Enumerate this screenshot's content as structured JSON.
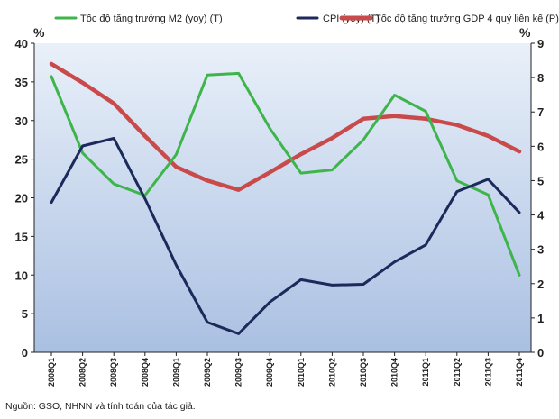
{
  "chart_data": {
    "type": "line",
    "categories": [
      "2008Q1",
      "2008Q2",
      "2008Q3",
      "2008Q4",
      "2009Q1",
      "2009Q2",
      "2009Q3",
      "2009Q4",
      "2010Q1",
      "2010Q2",
      "2010Q3",
      "2010Q4",
      "2011Q1",
      "2011Q2",
      "2011Q3",
      "2011Q4"
    ],
    "left_axis": {
      "unit": "%",
      "ylim": [
        0,
        40
      ],
      "ticks": [
        0,
        5,
        10,
        15,
        20,
        25,
        30,
        35,
        40
      ]
    },
    "right_axis": {
      "unit": "%",
      "ylim": [
        0,
        9
      ],
      "ticks": [
        0,
        1,
        2,
        3,
        4,
        5,
        6,
        7,
        8,
        9
      ]
    },
    "series": [
      {
        "name": "Tốc độ tăng trưởng M2 (yoy) (T)",
        "axis": "left",
        "color": "#3db54a",
        "values": [
          35.7,
          25.8,
          21.8,
          20.3,
          25.6,
          35.9,
          36.1,
          29.0,
          23.2,
          23.6,
          27.5,
          33.3,
          31.2,
          22.2,
          20.4,
          10.0
        ]
      },
      {
        "name": "CPI (yoy) (T)",
        "axis": "left",
        "color": "#1b2a5a",
        "values": [
          19.4,
          26.7,
          27.7,
          19.9,
          11.3,
          3.9,
          2.4,
          6.5,
          9.4,
          8.7,
          8.8,
          11.7,
          13.9,
          20.8,
          22.4,
          18.1
        ]
      },
      {
        "name": "Tốc độ tăng trưởng GDP 4 quý liên kế (P)",
        "axis": "right",
        "color": "#c94a4a",
        "values": [
          8.4,
          7.85,
          7.25,
          6.3,
          5.4,
          5.0,
          4.73,
          5.24,
          5.77,
          6.24,
          6.8,
          6.88,
          6.8,
          6.62,
          6.3,
          5.85
        ]
      }
    ],
    "legend_position": "top",
    "grid": false
  },
  "colors": {
    "plot_background_top": "#e9f0f9",
    "plot_background_bottom": "#aac0e2"
  },
  "source_note": "Nguồn: GSO, NHNN và tính toán của tác giả."
}
